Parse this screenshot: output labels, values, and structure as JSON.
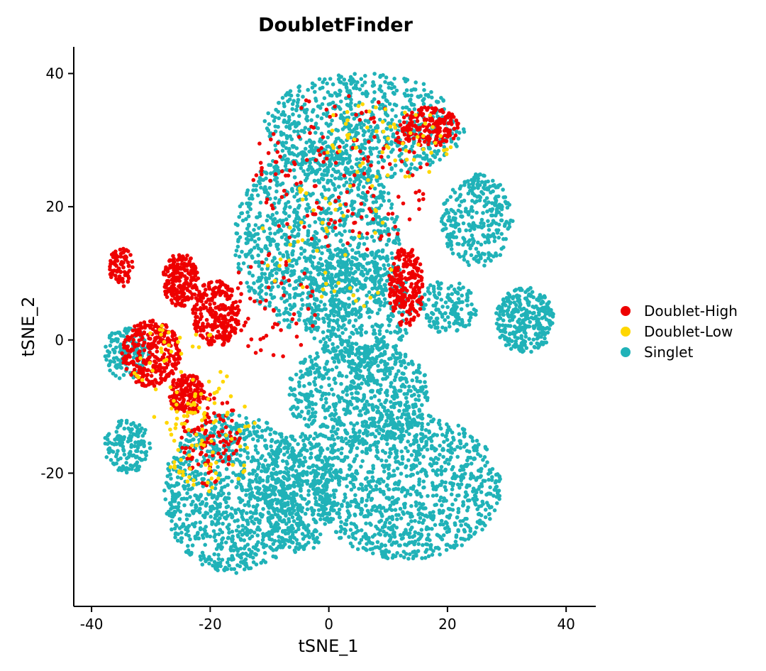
{
  "chart_data": {
    "type": "scatter",
    "title": "DoubletFinder",
    "xlabel": "tSNE_1",
    "ylabel": "tSNE_2",
    "xlim": [
      -43,
      45
    ],
    "ylim": [
      -40,
      44
    ],
    "x_ticks": [
      -40,
      -20,
      0,
      20,
      40
    ],
    "y_ticks": [
      -20,
      0,
      20,
      40
    ],
    "x_tick_labels": [
      "-40",
      "-20",
      "0",
      "20",
      "40"
    ],
    "y_tick_labels": [
      "-20",
      "0",
      "20",
      "40"
    ],
    "grid": false,
    "legend_position": "right",
    "legend": [
      "Doublet-High",
      "Doublet-Low",
      "Singlet"
    ],
    "colors": {
      "Doublet-High": "#EE0000",
      "Doublet-Low": "#FFD700",
      "Singlet": "#20B2B8"
    },
    "series": [
      {
        "name": "Singlet",
        "clusters": [
          {
            "cx": 6,
            "cy": 32,
            "rx": 17,
            "ry": 8,
            "n": 700
          },
          {
            "cx": -2,
            "cy": 15,
            "rx": 14,
            "ry": 14,
            "n": 1100
          },
          {
            "cx": 5,
            "cy": 5,
            "rx": 9,
            "ry": 9,
            "n": 400
          },
          {
            "cx": 25,
            "cy": 18,
            "rx": 6,
            "ry": 7,
            "n": 300
          },
          {
            "cx": 33,
            "cy": 3,
            "rx": 5,
            "ry": 5,
            "n": 300
          },
          {
            "cx": 20,
            "cy": 5,
            "rx": 5,
            "ry": 4,
            "n": 150
          },
          {
            "cx": 5,
            "cy": -8,
            "rx": 12,
            "ry": 8,
            "n": 700
          },
          {
            "cx": 13,
            "cy": -22,
            "rx": 16,
            "ry": 11,
            "n": 1100
          },
          {
            "cx": -16,
            "cy": -23,
            "rx": 12,
            "ry": 12,
            "n": 1000
          },
          {
            "cx": -5,
            "cy": -23,
            "rx": 6,
            "ry": 9,
            "n": 400
          },
          {
            "cx": -34,
            "cy": -16,
            "rx": 4,
            "ry": 4,
            "n": 150
          },
          {
            "cx": -34,
            "cy": -2,
            "rx": 4,
            "ry": 4,
            "n": 150
          }
        ]
      },
      {
        "name": "Doublet-High",
        "clusters": [
          {
            "cx": -25,
            "cy": 9,
            "rx": 3,
            "ry": 4,
            "n": 220
          },
          {
            "cx": -19,
            "cy": 4,
            "rx": 4,
            "ry": 5,
            "n": 260
          },
          {
            "cx": -30,
            "cy": -2,
            "rx": 5,
            "ry": 5,
            "n": 300
          },
          {
            "cx": -24,
            "cy": -8,
            "rx": 3,
            "ry": 3,
            "n": 150
          },
          {
            "cx": -35,
            "cy": 11,
            "rx": 2,
            "ry": 3,
            "n": 80
          },
          {
            "cx": 13,
            "cy": 8,
            "rx": 3,
            "ry": 6,
            "n": 220
          },
          {
            "cx": 17,
            "cy": 32,
            "rx": 5,
            "ry": 3,
            "n": 180
          },
          {
            "cx": -20,
            "cy": -15,
            "rx": 5,
            "ry": 7,
            "n": 120
          },
          {
            "cx": 2,
            "cy": 25,
            "rx": 15,
            "ry": 12,
            "n": 160
          },
          {
            "cx": -10,
            "cy": 5,
            "rx": 8,
            "ry": 8,
            "n": 60
          }
        ]
      },
      {
        "name": "Doublet-Low",
        "clusters": [
          {
            "cx": -20,
            "cy": -15,
            "rx": 8,
            "ry": 8,
            "n": 80
          },
          {
            "cx": 10,
            "cy": 30,
            "rx": 12,
            "ry": 6,
            "n": 60
          },
          {
            "cx": -25,
            "cy": -5,
            "rx": 8,
            "ry": 8,
            "n": 50
          },
          {
            "cx": 0,
            "cy": 15,
            "rx": 12,
            "ry": 12,
            "n": 50
          }
        ]
      }
    ]
  }
}
